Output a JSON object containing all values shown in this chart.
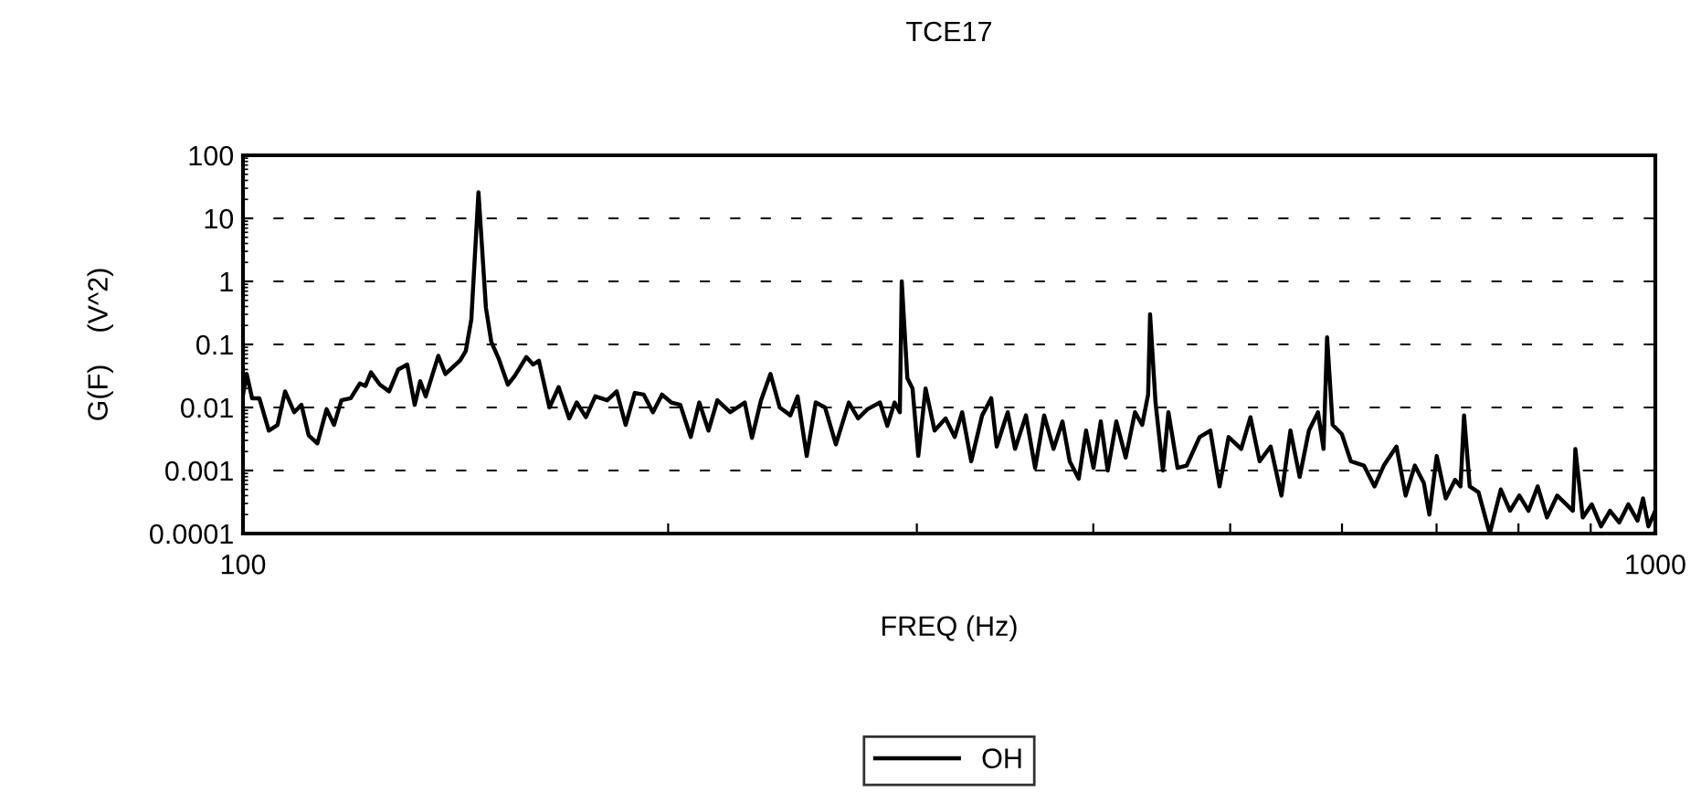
{
  "chart_data": {
    "type": "line",
    "title": "TCE17",
    "xlabel": "FREQ (Hz)",
    "ylabel": "G(F)    (V^2)",
    "log": "xy",
    "grid": "y",
    "legend": "bottom",
    "line_style": "solid",
    "marker": "none",
    "xlim": [
      100,
      1000
    ],
    "xticks": [
      100,
      {
        "value": 200,
        "label": null
      },
      {
        "value": 300,
        "label": null
      },
      {
        "value": 400,
        "label": null
      },
      {
        "value": 500,
        "label": null
      },
      {
        "value": 600,
        "label": null
      },
      {
        "value": 700,
        "label": null
      },
      {
        "value": 800,
        "label": null
      },
      {
        "value": 900,
        "label": null
      },
      1000
    ],
    "ylim": [
      0.0001,
      100
    ],
    "yticks": [
      0.0001,
      0.001,
      0.01,
      0.1,
      1,
      10,
      100
    ],
    "series": [
      {
        "name": "OH",
        "color": "#000000",
        "x": [
          100.0,
          100.6,
          101.5,
          102.7,
          104.3,
          105.8,
          107.1,
          108.7,
          110.0,
          111.3,
          112.9,
          114.6,
          116.0,
          117.4,
          119.2,
          121.0,
          122.1,
          123.2,
          125.0,
          126.9,
          128.8,
          130.7,
          132.3,
          133.5,
          134.7,
          137.5,
          139.1,
          142.5,
          143.8,
          145.1,
          146.8,
          148.6,
          149.9,
          151.7,
          154.0,
          155.8,
          158.7,
          160.5,
          162.0,
          164.8,
          167.3,
          170.2,
          172.3,
          174.9,
          177.6,
          181.1,
          183.9,
          186.6,
          189.4,
          192.2,
          195.1,
          198.0,
          201.0,
          204.0,
          207.5,
          210.4,
          213.6,
          216.7,
          221.3,
          226.6,
          229.3,
          232.7,
          236.3,
          239.9,
          244.1,
          247.0,
          250.7,
          254.4,
          258.3,
          262.9,
          268.5,
          272.6,
          276.8,
          282.5,
          285.9,
          289.3,
          291.8,
          292.7,
          295.4,
          297.9,
          300.7,
          304.3,
          308.8,
          314.4,
          319.1,
          323.0,
          327.8,
          333.7,
          338.7,
          341.7,
          347.9,
          352.1,
          358.4,
          363.8,
          369.2,
          374.9,
          380.4,
          384.9,
          390.6,
          395.3,
          400.1,
          404.9,
          409.5,
          415.3,
          421.7,
          428.1,
          433.2,
          437.4,
          438.8,
          442.7,
          448.1,
          452.1,
          458.9,
          465.8,
          475.7,
          484.1,
          491.4,
          498.7,
          509.1,
          516.8,
          524.6,
          534.1,
          543.6,
          551.6,
          560.0,
          568.5,
          577.0,
          582.2,
          585.6,
          590.9,
          599.8,
          608.7,
          621.8,
          632.7,
          642.3,
          655.7,
          665.6,
          675.6,
          685.7,
          691.8,
          700.2,
          710.6,
          721.4,
          727.9,
          732.1,
          738.9,
          749.6,
          763.4,
          777.3,
          789.1,
          801.1,
          813.3,
          825.5,
          838.1,
          852.1,
          865.0,
          874.2,
          877.8,
          888.4,
          901.6,
          915.3,
          928.8,
          942.9,
          957.0,
          971.4,
          980.2,
          988.8,
          1000.0
        ],
        "values": [
          0.016,
          0.034,
          0.014,
          0.014,
          0.0043,
          0.0053,
          0.018,
          0.0084,
          0.011,
          0.0036,
          0.0027,
          0.0094,
          0.0053,
          0.013,
          0.014,
          0.024,
          0.022,
          0.036,
          0.023,
          0.018,
          0.04,
          0.048,
          0.011,
          0.026,
          0.015,
          0.066,
          0.034,
          0.056,
          0.079,
          0.25,
          26,
          0.38,
          0.11,
          0.06,
          0.023,
          0.032,
          0.063,
          0.048,
          0.055,
          0.01,
          0.021,
          0.0067,
          0.012,
          0.007,
          0.015,
          0.013,
          0.018,
          0.0053,
          0.017,
          0.016,
          0.0084,
          0.016,
          0.012,
          0.011,
          0.0034,
          0.012,
          0.0043,
          0.013,
          0.0084,
          0.012,
          0.0033,
          0.013,
          0.034,
          0.01,
          0.0075,
          0.015,
          0.0017,
          0.012,
          0.01,
          0.0026,
          0.012,
          0.0067,
          0.0094,
          0.012,
          0.0051,
          0.012,
          0.0084,
          1.0,
          0.029,
          0.02,
          0.0017,
          0.02,
          0.0043,
          0.0067,
          0.0034,
          0.0084,
          0.0014,
          0.0075,
          0.014,
          0.0024,
          0.0084,
          0.0022,
          0.0075,
          0.0011,
          0.0075,
          0.0022,
          0.006,
          0.0014,
          0.00074,
          0.0043,
          0.0011,
          0.006,
          0.001,
          0.006,
          0.0016,
          0.0084,
          0.0053,
          0.016,
          0.3,
          0.012,
          0.001,
          0.0084,
          0.0011,
          0.0012,
          0.0034,
          0.0043,
          0.00056,
          0.0034,
          0.0022,
          0.007,
          0.0014,
          0.0024,
          0.0004,
          0.0043,
          0.00079,
          0.0043,
          0.0084,
          0.0022,
          0.13,
          0.0053,
          0.0038,
          0.0014,
          0.0012,
          0.00056,
          0.0012,
          0.0024,
          0.0004,
          0.0012,
          0.00063,
          0.0002,
          0.0017,
          0.00036,
          0.00071,
          0.00056,
          0.0075,
          0.00056,
          0.00045,
          0.0001,
          0.0005,
          0.00023,
          0.0004,
          0.00023,
          0.00056,
          0.00018,
          0.0004,
          0.00029,
          0.00023,
          0.0022,
          0.00018,
          0.00029,
          0.00013,
          0.00023,
          0.00015,
          0.00029,
          0.00016,
          0.00036,
          0.00013,
          0.00023
        ]
      }
    ]
  }
}
